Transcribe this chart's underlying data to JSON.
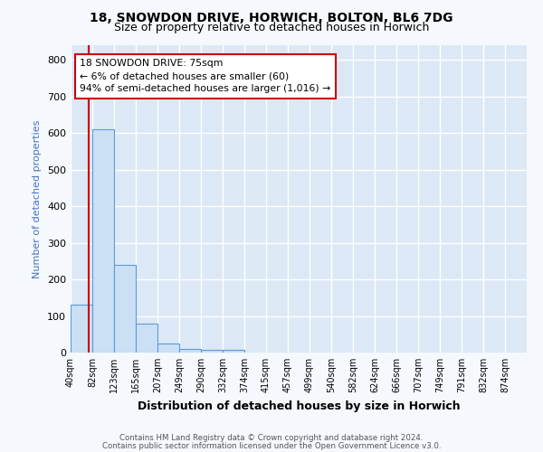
{
  "title_line1": "18, SNOWDON DRIVE, HORWICH, BOLTON, BL6 7DG",
  "title_line2": "Size of property relative to detached houses in Horwich",
  "xlabel": "Distribution of detached houses by size in Horwich",
  "ylabel": "Number of detached properties",
  "bin_labels": [
    "40sqm",
    "82sqm",
    "123sqm",
    "165sqm",
    "207sqm",
    "249sqm",
    "290sqm",
    "332sqm",
    "374sqm",
    "415sqm",
    "457sqm",
    "499sqm",
    "540sqm",
    "582sqm",
    "624sqm",
    "666sqm",
    "707sqm",
    "749sqm",
    "791sqm",
    "832sqm",
    "874sqm"
  ],
  "bar_heights": [
    130,
    610,
    240,
    78,
    25,
    10,
    8,
    8,
    0,
    0,
    0,
    0,
    0,
    0,
    0,
    0,
    0,
    0,
    0,
    0,
    0
  ],
  "bar_color": "#cce0f5",
  "bar_edge_color": "#5b9bd5",
  "vline_color": "#cc0000",
  "annotation_line1": "18 SNOWDON DRIVE: 75sqm",
  "annotation_line2": "← 6% of detached houses are smaller (60)",
  "annotation_line3": "94% of semi-detached houses are larger (1,016) →",
  "annotation_box_color": "#ffffff",
  "annotation_box_edge": "#cc0000",
  "ylim": [
    0,
    840
  ],
  "yticks": [
    0,
    100,
    200,
    300,
    400,
    500,
    600,
    700,
    800
  ],
  "footer_line1": "Contains HM Land Registry data © Crown copyright and database right 2024.",
  "footer_line2": "Contains public sector information licensed under the Open Government Licence v3.0.",
  "bg_color": "#f5f8fd",
  "plot_bg_color": "#dce8f5",
  "grid_color": "#ffffff",
  "title_color": "#000000",
  "ylabel_color": "#4472c4",
  "footer_color": "#555555",
  "bin_starts_real": [
    40,
    82,
    123,
    165,
    207,
    249,
    290,
    332,
    374,
    415,
    457,
    499,
    540,
    582,
    624,
    666,
    707,
    749,
    791,
    832,
    874
  ],
  "prop_sqm": 75
}
